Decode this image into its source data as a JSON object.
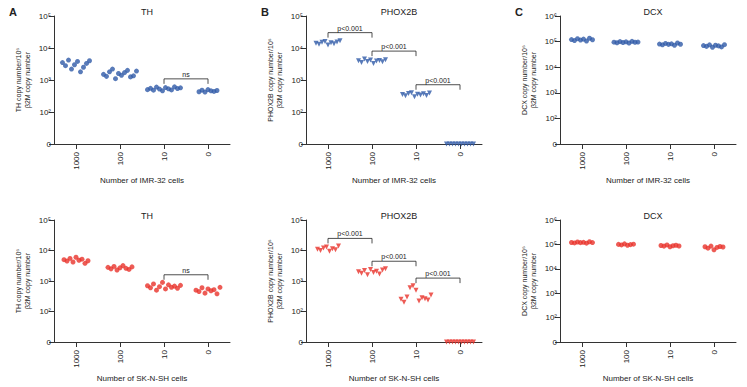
{
  "chart_data": [
    {
      "type": "scatter",
      "title": "TH",
      "subtitle": "A",
      "x_label": "Number of IMR-32 cells",
      "y_label": "TH copy number/10⁶\nβ2M copy number",
      "categories": [
        "1000",
        "100",
        "10",
        "0"
      ],
      "values": [
        [
          3500,
          2800,
          4200,
          2200,
          3000,
          3800,
          1800,
          2500,
          3300,
          4000
        ],
        [
          1500,
          1300,
          1800,
          2200,
          1100,
          1600,
          1400,
          1700,
          2000,
          1250,
          1350,
          1900
        ],
        [
          500,
          550,
          480,
          600,
          520,
          460,
          580,
          530,
          490,
          610,
          540,
          570
        ],
        [
          430,
          480,
          420,
          500,
          460,
          440,
          470
        ]
      ],
      "color": "#2f5aa8",
      "marker": "circle",
      "log": "y",
      "grid": false,
      "ylim": [
        0,
        100000
      ],
      "yticks": [
        0,
        {
          "value": 100,
          "label": "10²"
        },
        {
          "value": 1000,
          "label": "10³"
        },
        {
          "value": 10000,
          "label": "10⁴"
        },
        {
          "value": 100000,
          "label": "10⁵"
        }
      ],
      "annotations": [
        {
          "from": "10",
          "to": "0",
          "text": "ns"
        }
      ]
    },
    {
      "type": "scatter",
      "title": "PHOX2B",
      "subtitle": "B",
      "x_label": "Number of IMR-32 cells",
      "y_label": "PHOX2B copy number/10⁶\nβ2M copy number",
      "categories": [
        "1000",
        "100",
        "10",
        "0"
      ],
      "values": [
        [
          14000,
          13000,
          15000,
          16000,
          12500,
          14500,
          13500,
          15500,
          17000
        ],
        [
          4000,
          3500,
          4500,
          3800,
          4200,
          3300,
          3900,
          4100,
          3700,
          4300
        ],
        [
          350,
          320,
          380,
          400,
          300,
          360,
          340,
          370,
          330,
          390
        ],
        [
          0,
          0,
          0,
          0,
          0,
          0,
          0,
          0,
          0,
          0
        ]
      ],
      "color": "#2f5aa8",
      "marker": "triangle_down",
      "log": "y",
      "grid": false,
      "ylim": [
        0,
        100000
      ],
      "yticks": [
        0,
        {
          "value": 100,
          "label": "10²"
        },
        {
          "value": 1000,
          "label": "10³"
        },
        {
          "value": 10000,
          "label": "10⁴"
        },
        {
          "value": 100000,
          "label": "10⁵"
        }
      ],
      "annotations": [
        {
          "from": "1000",
          "to": "100",
          "text": "p<0.001"
        },
        {
          "from": "100",
          "to": "10",
          "text": "p<0.001"
        },
        {
          "from": "10",
          "to": "0",
          "text": "p<0.001"
        }
      ]
    },
    {
      "type": "scatter",
      "title": "DCX",
      "subtitle": "C",
      "x_label": "Number of IMR-32 cells",
      "y_label": "DCX copy number/10⁶\nβ2M copy number",
      "categories": [
        "1000",
        "100",
        "10",
        "0"
      ],
      "values": [
        [
          120000,
          110000,
          130000,
          115000,
          125000,
          105000,
          135000,
          118000
        ],
        [
          95000,
          90000,
          100000,
          92000,
          98000,
          88000,
          102000,
          94000,
          96000
        ],
        [
          80000,
          75000,
          85000,
          78000,
          82000,
          72000,
          88000,
          79000
        ],
        [
          70000,
          65000,
          75000,
          60000,
          72000,
          68000,
          62000,
          76000
        ]
      ],
      "color": "#2f5aa8",
      "marker": "circle",
      "log": "y",
      "grid": false,
      "ylim": [
        0,
        1000000
      ],
      "yticks": [
        0,
        {
          "value": 100,
          "label": "10²"
        },
        {
          "value": 1000,
          "label": "10³"
        },
        {
          "value": 10000,
          "label": "10⁴"
        },
        {
          "value": 100000,
          "label": "10⁵"
        },
        {
          "value": 1000000,
          "label": "10⁶"
        }
      ],
      "annotations": []
    },
    {
      "type": "scatter",
      "title": "TH",
      "x_label": "Number of SK-N-SH cells",
      "y_label": "TH copy number/10⁶\nβ2M copy number",
      "categories": [
        "1000",
        "100",
        "10",
        "0"
      ],
      "values": [
        [
          5000,
          4500,
          5500,
          4200,
          6000,
          4800,
          5200,
          3800,
          4600
        ],
        [
          2800,
          2500,
          3000,
          2300,
          2700,
          3200,
          2600,
          2400,
          2900
        ],
        [
          700,
          600,
          800,
          500,
          650,
          900,
          550,
          750,
          620,
          680,
          580,
          720
        ],
        [
          500,
          450,
          600,
          400,
          550,
          480,
          520,
          380,
          620
        ]
      ],
      "color": "#e8322a",
      "marker": "circle",
      "log": "y",
      "grid": false,
      "ylim": [
        0,
        100000
      ],
      "yticks": [
        0,
        {
          "value": 100,
          "label": "10²"
        },
        {
          "value": 1000,
          "label": "10³"
        },
        {
          "value": 10000,
          "label": "10⁴"
        },
        {
          "value": 100000,
          "label": "10⁵"
        }
      ],
      "annotations": [
        {
          "from": "10",
          "to": "0",
          "text": "ns"
        }
      ]
    },
    {
      "type": "scatter",
      "title": "PHOX2B",
      "x_label": "Number of SK-N-SH cells",
      "y_label": "PHOX2B copy number/10⁶\nβ2M copy number",
      "categories": [
        "1000",
        "100",
        "10",
        "0"
      ],
      "values": [
        [
          11000,
          10000,
          12000,
          13000,
          9500,
          11500,
          10500,
          14000
        ],
        [
          2000,
          1800,
          2200,
          1600,
          2400,
          1900,
          2100,
          1700,
          2300,
          2500
        ],
        [
          250,
          200,
          300,
          600,
          700,
          500,
          220,
          280,
          260,
          240,
          350
        ],
        [
          0,
          0,
          0,
          0,
          0,
          0,
          0,
          0,
          0,
          0
        ]
      ],
      "color": "#e8322a",
      "marker": "triangle_down",
      "log": "y",
      "grid": false,
      "ylim": [
        0,
        100000
      ],
      "yticks": [
        0,
        {
          "value": 100,
          "label": "10²"
        },
        {
          "value": 1000,
          "label": "10³"
        },
        {
          "value": 10000,
          "label": "10⁴"
        },
        {
          "value": 100000,
          "label": "10⁵"
        }
      ],
      "annotations": [
        {
          "from": "1000",
          "to": "100",
          "text": "p<0.001"
        },
        {
          "from": "100",
          "to": "10",
          "text": "p<0.001"
        },
        {
          "from": "10",
          "to": "0",
          "text": "p<0.001"
        }
      ]
    },
    {
      "type": "scatter",
      "title": "DCX",
      "x_label": "Number of SK-N-SH cells",
      "y_label": "DCX copy number/10⁶\nβ2M copy number",
      "categories": [
        "1000",
        "100",
        "10",
        "0"
      ],
      "values": [
        [
          120000,
          115000,
          125000,
          118000,
          122000,
          112000,
          128000,
          119000
        ],
        [
          100000,
          95000,
          105000,
          92000,
          98000,
          102000
        ],
        [
          90000,
          85000,
          95000,
          80000,
          88000,
          92000,
          86000
        ],
        [
          80000,
          70000,
          85000,
          60000,
          75000,
          82000,
          78000
        ]
      ],
      "color": "#e8322a",
      "marker": "circle",
      "log": "y",
      "grid": false,
      "ylim": [
        0,
        1000000
      ],
      "yticks": [
        0,
        {
          "value": 100,
          "label": "10²"
        },
        {
          "value": 1000,
          "label": "10³"
        },
        {
          "value": 10000,
          "label": "10⁴"
        },
        {
          "value": 100000,
          "label": "10⁵"
        },
        {
          "value": 1000000,
          "label": "10⁶"
        }
      ],
      "annotations": []
    }
  ]
}
